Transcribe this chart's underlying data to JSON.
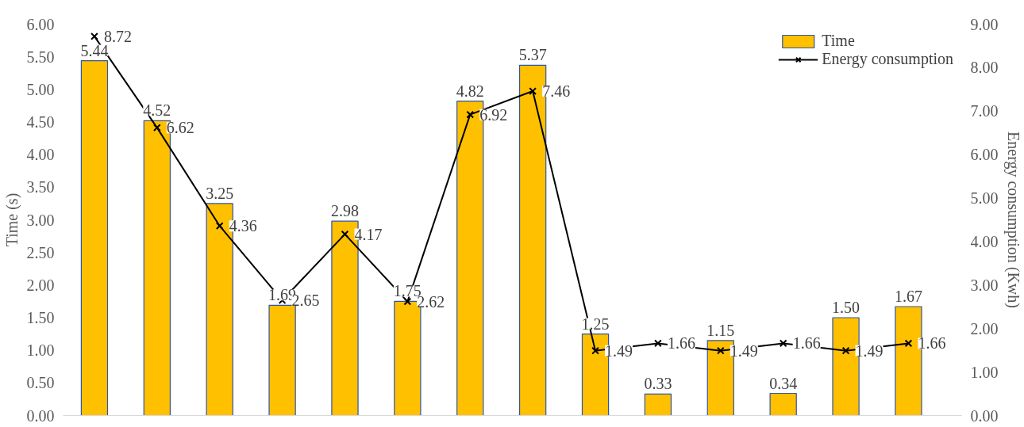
{
  "chart_data": {
    "type": "bar",
    "ylabel": "Time (s)",
    "y2label": "Energy consumption (Kwh)",
    "categories": [
      null,
      null,
      null,
      null,
      null,
      null,
      null,
      null,
      null,
      null,
      null,
      null,
      null,
      null
    ],
    "series": [
      {
        "name": "Time",
        "color": "#ffc000",
        "values": [
          5.44,
          4.52,
          3.25,
          1.69,
          2.98,
          1.75,
          4.82,
          5.37,
          1.25,
          0.33,
          1.15,
          0.34,
          1.5,
          1.67
        ],
        "value_labels": [
          "5.44",
          "4.52",
          "3.25",
          "1.69",
          "2.98",
          "1.75",
          "4.82",
          "5.37",
          "1.25",
          "0.33",
          "1.15",
          "0.34",
          "1.50",
          "1.67"
        ]
      },
      {
        "name": "Energy consumption",
        "type": "line",
        "axis": "y2",
        "color": "#000000",
        "marker": "cross",
        "values": [
          8.72,
          6.62,
          4.36,
          2.65,
          4.17,
          2.62,
          6.92,
          7.46,
          1.49,
          1.66,
          1.49,
          1.66,
          1.49,
          1.66
        ],
        "value_labels": [
          "8.72",
          "6.62",
          "4.36",
          "2.65",
          "4.17",
          "2.62",
          "6.92",
          "7.46",
          "1.49",
          "1.66",
          "1.49",
          "1.66",
          "1.49",
          "1.66"
        ]
      }
    ],
    "ylim": [
      0,
      6
    ],
    "yticks": [
      {
        "value": 0,
        "label": "0.00"
      },
      {
        "value": 0.5,
        "label": "0.50"
      },
      {
        "value": 1,
        "label": "1.00"
      },
      {
        "value": 1.5,
        "label": "1.50"
      },
      {
        "value": 2,
        "label": "2.00"
      },
      {
        "value": 2.5,
        "label": "2.50"
      },
      {
        "value": 3,
        "label": "3.00"
      },
      {
        "value": 3.5,
        "label": "3.50"
      },
      {
        "value": 4,
        "label": "4.00"
      },
      {
        "value": 4.5,
        "label": "4.50"
      },
      {
        "value": 5,
        "label": "5.00"
      },
      {
        "value": 5.5,
        "label": "5.50"
      },
      {
        "value": 6,
        "label": "6.00"
      }
    ],
    "y2lim": [
      0,
      9
    ],
    "y2ticks": [
      {
        "value": 0,
        "label": "0.00"
      },
      {
        "value": 1,
        "label": "1.00"
      },
      {
        "value": 2,
        "label": "2.00"
      },
      {
        "value": 3,
        "label": "3.00"
      },
      {
        "value": 4,
        "label": "4.00"
      },
      {
        "value": 5,
        "label": "5.00"
      },
      {
        "value": 6,
        "label": "6.00"
      },
      {
        "value": 7,
        "label": "7.00"
      },
      {
        "value": 8,
        "label": "8.00"
      },
      {
        "value": 9,
        "label": "9.00"
      }
    ],
    "grid": false,
    "legend": "top right",
    "line_style": "solid"
  }
}
